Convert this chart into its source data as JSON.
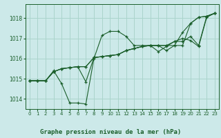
{
  "title": "Graphe pression niveau de la mer (hPa)",
  "bg_color": "#cce9e9",
  "grid_color": "#aad4cc",
  "line_color": "#1a5e2a",
  "text_color": "#1a5e2a",
  "xlim": [
    -0.5,
    23.5
  ],
  "ylim": [
    1013.5,
    1018.7
  ],
  "yticks": [
    1014,
    1015,
    1016,
    1017,
    1018
  ],
  "xticks": [
    0,
    1,
    2,
    3,
    4,
    5,
    6,
    7,
    8,
    9,
    10,
    11,
    12,
    13,
    14,
    15,
    16,
    17,
    18,
    19,
    20,
    21,
    22,
    23
  ],
  "s1": [
    1014.9,
    1014.9,
    1014.9,
    1015.4,
    1014.75,
    1013.8,
    1013.8,
    1013.75,
    1016.0,
    1017.15,
    1017.35,
    1017.35,
    1017.1,
    1016.65,
    1016.65,
    1016.65,
    1016.65,
    1016.65,
    1016.65,
    1016.65,
    1017.75,
    1018.05,
    1018.1,
    1018.25
  ],
  "s2": [
    1014.9,
    1014.9,
    1014.9,
    1015.35,
    1015.5,
    1015.55,
    1015.6,
    1015.6,
    1016.05,
    1016.1,
    1016.15,
    1016.2,
    1016.4,
    1016.5,
    1016.6,
    1016.65,
    1016.65,
    1016.4,
    1016.65,
    1017.3,
    1017.75,
    1018.05,
    1018.1,
    1018.25
  ],
  "s3": [
    1014.9,
    1014.9,
    1014.9,
    1015.35,
    1015.5,
    1015.55,
    1015.6,
    1014.85,
    1016.05,
    1016.1,
    1016.15,
    1016.2,
    1016.4,
    1016.5,
    1016.6,
    1016.65,
    1016.35,
    1016.6,
    1016.85,
    1017.0,
    1016.9,
    1016.6,
    1018.05,
    1018.25
  ],
  "s4": [
    1014.9,
    1014.9,
    1014.9,
    1015.35,
    1015.5,
    1015.55,
    1015.6,
    1015.6,
    1016.05,
    1016.1,
    1016.15,
    1016.2,
    1016.4,
    1016.5,
    1016.6,
    1016.65,
    1016.65,
    1016.65,
    1016.85,
    1016.85,
    1017.1,
    1016.65,
    1018.1,
    1018.25
  ]
}
